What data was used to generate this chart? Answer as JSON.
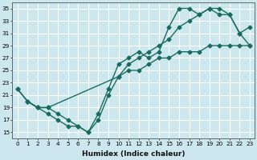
{
  "xlabel": "Humidex (Indice chaleur)",
  "ylabel": "",
  "xlim": [
    -0.5,
    23.5
  ],
  "ylim": [
    14,
    36
  ],
  "yticks": [
    15,
    17,
    19,
    21,
    23,
    25,
    27,
    29,
    31,
    33,
    35
  ],
  "xticks": [
    0,
    1,
    2,
    3,
    4,
    5,
    6,
    7,
    8,
    9,
    10,
    11,
    12,
    13,
    14,
    15,
    16,
    17,
    18,
    19,
    20,
    21,
    22,
    23
  ],
  "bg_color": "#cce8ee",
  "grid_color": "#ffffff",
  "line_color": "#1a6b5e",
  "line1_x": [
    0,
    1,
    2,
    3,
    4,
    5,
    6,
    7,
    8,
    9,
    10,
    11,
    12,
    13,
    14,
    15,
    16,
    17,
    18,
    19,
    20,
    21,
    22,
    23
  ],
  "line1_y": [
    22,
    20,
    19,
    18,
    17,
    16,
    16,
    15,
    18,
    22,
    26,
    27,
    28,
    27,
    28,
    32,
    35,
    35,
    34,
    35,
    35,
    34,
    31,
    32
  ],
  "line2_x": [
    0,
    1,
    2,
    3,
    4,
    5,
    6,
    7,
    8,
    9,
    10,
    11,
    12,
    13,
    14,
    15,
    16,
    17,
    18,
    19,
    20,
    21,
    22,
    23
  ],
  "line2_y": [
    22,
    20,
    19,
    19,
    18,
    17,
    16,
    15,
    17,
    21,
    24,
    26,
    27,
    28,
    29,
    30,
    32,
    33,
    34,
    35,
    34,
    34,
    31,
    29
  ],
  "line3_x": [
    1,
    2,
    3,
    10,
    11,
    12,
    13,
    14,
    15,
    16,
    17,
    18,
    19,
    20,
    21,
    22,
    23
  ],
  "line3_y": [
    20,
    19,
    19,
    24,
    25,
    25,
    26,
    27,
    27,
    28,
    28,
    28,
    29,
    29,
    29,
    29,
    29
  ],
  "marker": "D",
  "markersize": 2.5,
  "linewidth": 1.0,
  "tick_fontsize": 5.2,
  "xlabel_fontsize": 6.5
}
